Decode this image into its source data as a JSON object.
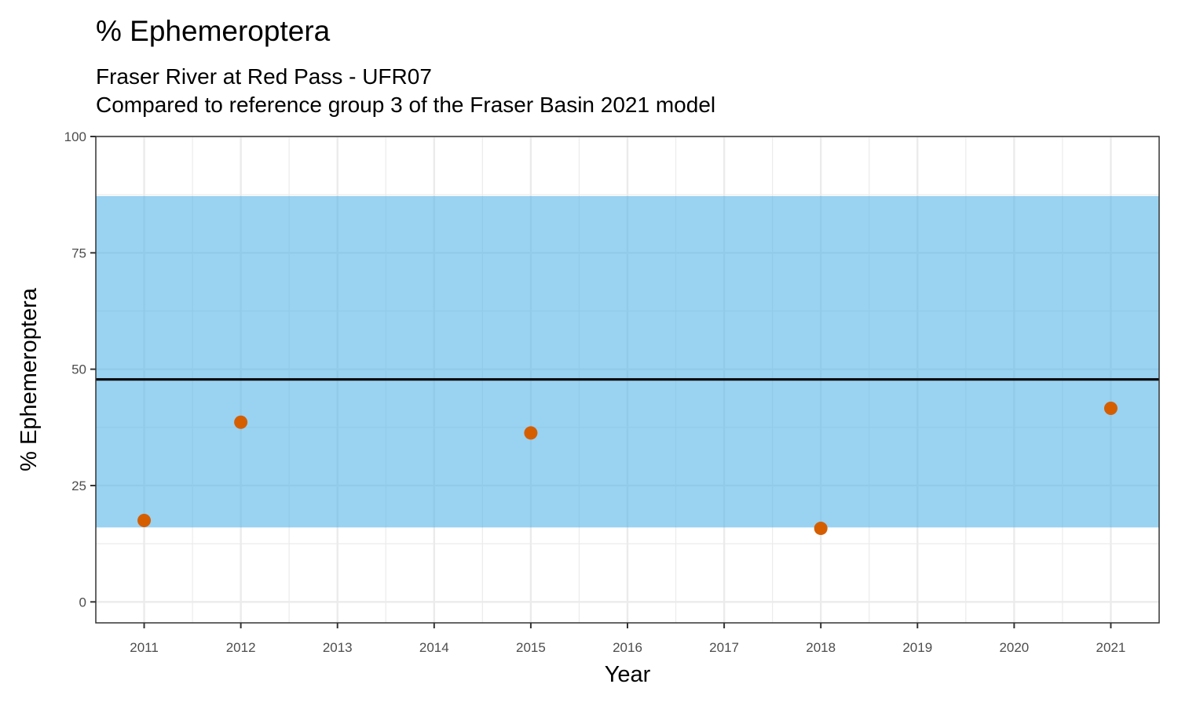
{
  "chart_data": {
    "type": "scatter",
    "title": "% Ephemeroptera",
    "subtitle_lines": [
      "Fraser River at Red Pass - UFR07",
      "Compared to reference group 3 of the Fraser Basin 2021 model"
    ],
    "xlabel": "Year",
    "ylabel": "% Ephemeroptera",
    "xlim": [
      2010.5,
      2021.5
    ],
    "ylim": [
      -4.5,
      100
    ],
    "x_ticks": [
      2011,
      2012,
      2013,
      2014,
      2015,
      2016,
      2017,
      2018,
      2019,
      2020,
      2021
    ],
    "y_ticks": [
      0,
      25,
      50,
      75,
      100
    ],
    "grid": true,
    "reference_band": {
      "low": 16,
      "high": 87.2,
      "color": "#56B4E9"
    },
    "reference_line": {
      "y": 47.8,
      "color": "#000000"
    },
    "series": [
      {
        "color": "#D55E00",
        "points": [
          {
            "x": 2011,
            "y": 17.5
          },
          {
            "x": 2012,
            "y": 38.6
          },
          {
            "x": 2015,
            "y": 36.3
          },
          {
            "x": 2018,
            "y": 15.8
          },
          {
            "x": 2021,
            "y": 41.6
          }
        ]
      }
    ]
  }
}
